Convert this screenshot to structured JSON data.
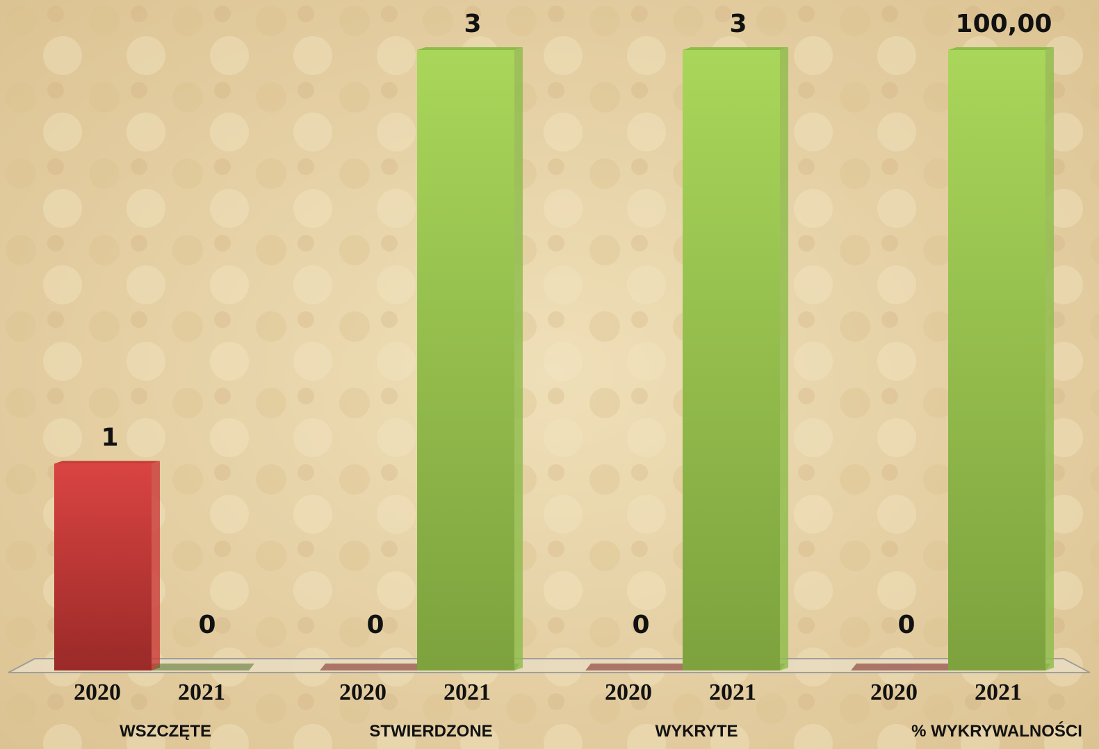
{
  "chart_data": [
    {
      "type": "bar",
      "categories": [
        "WSZCZĘTE",
        "STWIERDZONE",
        "WYKRYTE"
      ],
      "series": [
        {
          "name": "2020",
          "color": "#c93a38",
          "values": [
            1,
            0,
            0
          ]
        },
        {
          "name": "2021",
          "color": "#8cbc48",
          "values": [
            0,
            3,
            3
          ]
        }
      ],
      "ylim": [
        0,
        3
      ]
    },
    {
      "type": "bar",
      "categories": [
        "% WYKRYWALNOŚCI"
      ],
      "series": [
        {
          "name": "2020",
          "color": "#c93a38",
          "values": [
            0
          ]
        },
        {
          "name": "2021",
          "color": "#8cbc48",
          "values": [
            100
          ],
          "value_labels": [
            "100,00"
          ]
        }
      ],
      "ylim": [
        0,
        100
      ]
    }
  ]
}
